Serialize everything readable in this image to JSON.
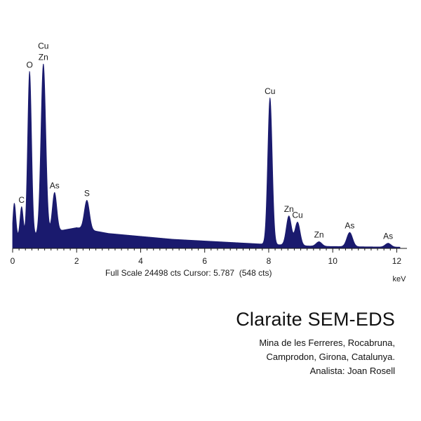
{
  "chart_data": {
    "type": "area",
    "xlabel": "keV",
    "ylabel": "",
    "xlim": [
      0,
      12.1
    ],
    "ylim": [
      0,
      24498
    ],
    "x_ticks": [
      0,
      2,
      4,
      6,
      8,
      10,
      12
    ],
    "grid": false,
    "fill_color": "#1a1a6e",
    "baseline_continuum": [
      [
        0.15,
        1200
      ],
      [
        2.0,
        2500
      ],
      [
        3.0,
        1800
      ],
      [
        5.0,
        1100
      ],
      [
        7.9,
        500
      ],
      [
        9.5,
        250
      ],
      [
        12.1,
        150
      ]
    ],
    "peaks": [
      {
        "label": "",
        "energy": 0.05,
        "counts": 5000,
        "width": 0.05
      },
      {
        "label": "C",
        "energy": 0.28,
        "counts": 3700,
        "width": 0.05
      },
      {
        "label": "O",
        "energy": 0.53,
        "counts": 19800,
        "width": 0.06
      },
      {
        "label": "Cu Zn",
        "energy": 0.96,
        "counts": 20400,
        "width": 0.075
      },
      {
        "label": "As",
        "energy": 1.31,
        "counts": 4700,
        "width": 0.07
      },
      {
        "label": "S",
        "energy": 2.32,
        "counts": 3500,
        "width": 0.08
      },
      {
        "label": "Cu",
        "energy": 8.04,
        "counts": 17600,
        "width": 0.07
      },
      {
        "label": "Zn",
        "energy": 8.63,
        "counts": 3500,
        "width": 0.08
      },
      {
        "label": "Cu",
        "energy": 8.9,
        "counts": 2800,
        "width": 0.08
      },
      {
        "label": "Zn",
        "energy": 9.57,
        "counts": 550,
        "width": 0.09
      },
      {
        "label": "As",
        "energy": 10.53,
        "counts": 1700,
        "width": 0.09
      },
      {
        "label": "As",
        "energy": 11.73,
        "counts": 450,
        "width": 0.09
      }
    ]
  },
  "status": {
    "text": "Full Scale 24498 cts Cursor: 5.787  (548 cts)"
  },
  "caption": {
    "title": "Claraite SEM-EDS",
    "line1": "Mina de les Ferreres, Rocabruna,",
    "line2": "Camprodon, Girona, Catalunya.",
    "line3": "Analista: Joan Rosell"
  }
}
